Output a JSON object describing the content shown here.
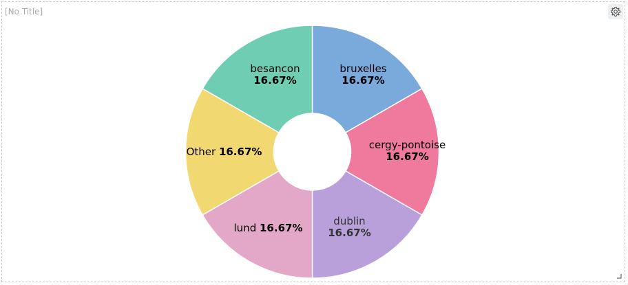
{
  "widget": {
    "title": "[No Title]",
    "settings_icon": "gear-icon",
    "resize_icon": "resize-corner-icon"
  },
  "chart_data": {
    "type": "pie",
    "donut": true,
    "title": "",
    "categories": [
      "bruxelles",
      "cergy-pontoise",
      "dublin",
      "lund",
      "Other",
      "besancon"
    ],
    "values": [
      16.67,
      16.67,
      16.67,
      16.67,
      16.67,
      16.67
    ],
    "percent_labels": [
      "16.67%",
      "16.67%",
      "16.67%",
      "16.67%",
      "16.67%",
      "16.67%"
    ],
    "colors": [
      "#7aaadb",
      "#ef7a9e",
      "#b9a0da",
      "#e3a7c8",
      "#f1d870",
      "#6fcdb3"
    ],
    "legend": "none"
  }
}
